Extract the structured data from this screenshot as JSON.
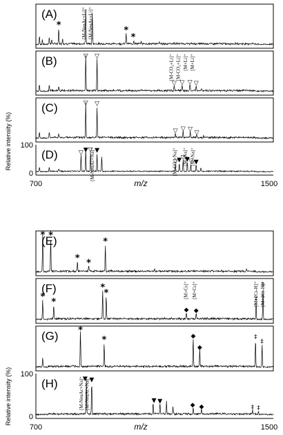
{
  "chart_data": [
    {
      "type": "line",
      "x_range": [
        700,
        1500
      ],
      "xlabel": "m/z",
      "ylabel": "Relative intensity (%)",
      "y_ticks": [
        "100",
        "0"
      ],
      "x_ticks": [
        "700",
        "1500"
      ],
      "panels": [
        {
          "label": "(A)",
          "peaks": [
            [
              712,
              0.22
            ],
            [
              722,
              0.14
            ],
            [
              745,
              0.18
            ],
            [
              753,
              0.12
            ],
            [
              777,
              0.42
            ],
            [
              790,
              0.15
            ],
            [
              868,
              0.95
            ],
            [
              890,
              0.85
            ],
            [
              1004,
              0.28
            ],
            [
              1030,
              0.09
            ],
            [
              1055,
              0.06
            ],
            [
              1116,
              0.04
            ],
            [
              1165,
              0.04
            ]
          ],
          "annotations": [
            {
              "text": "[M-NeuAc+Li]⁺",
              "x": 868
            },
            {
              "text": "[M-NeuAc+Li]⁺",
              "x": 890
            }
          ],
          "markers": [
            {
              "symbol": "*",
              "x": 777
            },
            {
              "symbol": "*",
              "x": 1004
            },
            {
              "symbol": "*",
              "x": 1028
            }
          ]
        },
        {
          "label": "(B)",
          "peaks": [
            [
              712,
              0.2
            ],
            [
              745,
              0.17
            ],
            [
              777,
              0.12
            ],
            [
              868,
              0.95
            ],
            [
              906,
              0.88
            ],
            [
              1166,
              0.14
            ],
            [
              1193,
              0.16
            ],
            [
              1219,
              0.17
            ],
            [
              1240,
              0.14
            ],
            [
              1258,
              0.05
            ]
          ],
          "annotations": [
            {
              "text": "[M-CO₂+Li]⁺",
              "x": 1162
            },
            {
              "text": "[M-CO₂+Li]⁺",
              "x": 1185
            },
            {
              "text": "[M+Li]⁺",
              "x": 1209
            },
            {
              "text": "[M+Li]⁺",
              "x": 1232
            }
          ],
          "markers": [
            {
              "symbol": "▽",
              "x": 868
            },
            {
              "symbol": "▽",
              "x": 906
            },
            {
              "symbol": "▽",
              "x": 1166
            },
            {
              "symbol": "▽",
              "x": 1193
            },
            {
              "symbol": "▽",
              "x": 1219
            },
            {
              "symbol": "▽",
              "x": 1240
            }
          ]
        },
        {
          "label": "(C)",
          "peaks": [
            [
              712,
              0.18
            ],
            [
              745,
              0.15
            ],
            [
              777,
              0.1
            ],
            [
              868,
              0.95
            ],
            [
              906,
              0.85
            ],
            [
              1170,
              0.12
            ],
            [
              1196,
              0.18
            ],
            [
              1220,
              0.17
            ],
            [
              1242,
              0.07
            ],
            [
              1265,
              0.04
            ]
          ],
          "annotations": [],
          "markers": [
            {
              "symbol": "▽",
              "x": 868
            },
            {
              "symbol": "▽",
              "x": 906
            },
            {
              "symbol": "▽",
              "x": 1170
            },
            {
              "symbol": "▽",
              "x": 1196
            },
            {
              "symbol": "▽",
              "x": 1220
            },
            {
              "symbol": "▽",
              "x": 1242
            }
          ]
        },
        {
          "label": "(D)",
          "peaks": [
            [
              712,
              0.2
            ],
            [
              745,
              0.16
            ],
            [
              777,
              0.1
            ],
            [
              852,
              0.68
            ],
            [
              868,
              0.95
            ],
            [
              884,
              0.82
            ],
            [
              906,
              0.78
            ],
            [
              922,
              0.65
            ],
            [
              1170,
              0.3
            ],
            [
              1183,
              0.37
            ],
            [
              1196,
              0.47
            ],
            [
              1210,
              0.4
            ],
            [
              1222,
              0.32
            ],
            [
              1240,
              0.28
            ],
            [
              1256,
              0.14
            ]
          ],
          "annotations": [
            {
              "text": "[M-NeuAc+Na]⁺",
              "x": 895
            },
            {
              "text": "[M-CO₂+Na]⁺",
              "x": 1173
            },
            {
              "text": "[M+Na]⁺",
              "x": 1208
            },
            {
              "text": "[M+Na]⁺",
              "x": 1234
            }
          ],
          "markers": [
            {
              "symbol": "▽",
              "x": 852
            },
            {
              "symbol": "▼",
              "x": 868
            },
            {
              "symbol": "▽",
              "x": 884
            },
            {
              "symbol": "▼",
              "x": 906
            },
            {
              "symbol": "▽",
              "x": 1170
            },
            {
              "symbol": "▼",
              "x": 1183
            },
            {
              "symbol": "▽",
              "x": 1196
            },
            {
              "symbol": "▼",
              "x": 1210
            },
            {
              "symbol": "▽",
              "x": 1222
            },
            {
              "symbol": "▼",
              "x": 1240
            }
          ]
        }
      ]
    },
    {
      "type": "line",
      "x_range": [
        700,
        1500
      ],
      "xlabel": "m/z",
      "ylabel": "Relative intensity (%)",
      "y_ticks": [
        "100",
        "0"
      ],
      "x_ticks": [
        "700",
        "1500"
      ],
      "panels": [
        {
          "label": "(E)",
          "peaks": [
            [
              723,
              1.0
            ],
            [
              750,
              0.86
            ],
            [
              840,
              0.26
            ],
            [
              878,
              0.14
            ],
            [
              934,
              0.7
            ],
            [
              1100,
              0.06
            ],
            [
              1410,
              0.05
            ]
          ],
          "annotations": [],
          "markers": [
            {
              "symbol": "*",
              "x": 723
            },
            {
              "symbol": "*",
              "x": 750
            },
            {
              "symbol": "*",
              "x": 840
            },
            {
              "symbol": "*",
              "x": 878
            },
            {
              "symbol": "*",
              "x": 934
            }
          ]
        },
        {
          "label": "(F)",
          "peaks": [
            [
              723,
              0.5
            ],
            [
              760,
              0.36
            ],
            [
              925,
              0.75
            ],
            [
              937,
              0.6
            ],
            [
              1207,
              0.18
            ],
            [
              1240,
              0.16
            ],
            [
              1442,
              0.46
            ],
            [
              1465,
              0.85
            ]
          ],
          "annotations": [
            {
              "text": "[M+Cs]⁺",
              "x": 1210
            },
            {
              "text": "[M+Cs]⁺",
              "x": 1240
            },
            {
              "text": "[M+2Cs-H]⁺",
              "x": 1447
            },
            {
              "text": "[M+2Cs-H]⁺",
              "x": 1470
            }
          ],
          "markers": [
            {
              "symbol": "*",
              "x": 723
            },
            {
              "symbol": "*",
              "x": 760
            },
            {
              "symbol": "*",
              "x": 925
            },
            {
              "symbol": "*",
              "x": 937
            },
            {
              "symbol": "◆",
              "x": 1207
            },
            {
              "symbol": "◆",
              "x": 1240
            },
            {
              "symbol": "‡",
              "x": 1442
            },
            {
              "symbol": "‡",
              "x": 1465
            }
          ]
        },
        {
          "label": "(G)",
          "peaks": [
            [
              723,
              0.25
            ],
            [
              850,
              0.97
            ],
            [
              930,
              0.62
            ],
            [
              1230,
              0.75
            ],
            [
              1252,
              0.45
            ],
            [
              1440,
              0.72
            ],
            [
              1462,
              0.6
            ]
          ],
          "annotations": [],
          "markers": [
            {
              "symbol": "*",
              "x": 850
            },
            {
              "symbol": "*",
              "x": 930
            },
            {
              "symbol": "◆",
              "x": 1230
            },
            {
              "symbol": "◆",
              "x": 1252
            },
            {
              "symbol": "‡",
              "x": 1440
            },
            {
              "symbol": "‡",
              "x": 1462
            }
          ]
        },
        {
          "label": "(H)",
          "peaks": [
            [
              870,
              0.95
            ],
            [
              888,
              0.85
            ],
            [
              1095,
              0.3
            ],
            [
              1118,
              0.28
            ],
            [
              1140,
              0.32
            ],
            [
              1162,
              0.2
            ],
            [
              1230,
              0.18
            ],
            [
              1258,
              0.14
            ],
            [
              1430,
              0.12
            ],
            [
              1450,
              0.1
            ]
          ],
          "annotations": [
            {
              "text": "[M-NeuAc+Na]⁺",
              "x": 858
            },
            {
              "text": "[M-NeuAc+Na]⁺",
              "x": 878
            }
          ],
          "markers": [
            {
              "symbol": "▼",
              "x": 866
            },
            {
              "symbol": "▼",
              "x": 888
            },
            {
              "symbol": "▼",
              "x": 1098
            },
            {
              "symbol": "▼",
              "x": 1118
            },
            {
              "symbol": "◆",
              "x": 1228
            },
            {
              "symbol": "◆",
              "x": 1258
            },
            {
              "symbol": "‡",
              "x": 1430
            },
            {
              "symbol": "‡",
              "x": 1450
            }
          ]
        }
      ]
    }
  ]
}
